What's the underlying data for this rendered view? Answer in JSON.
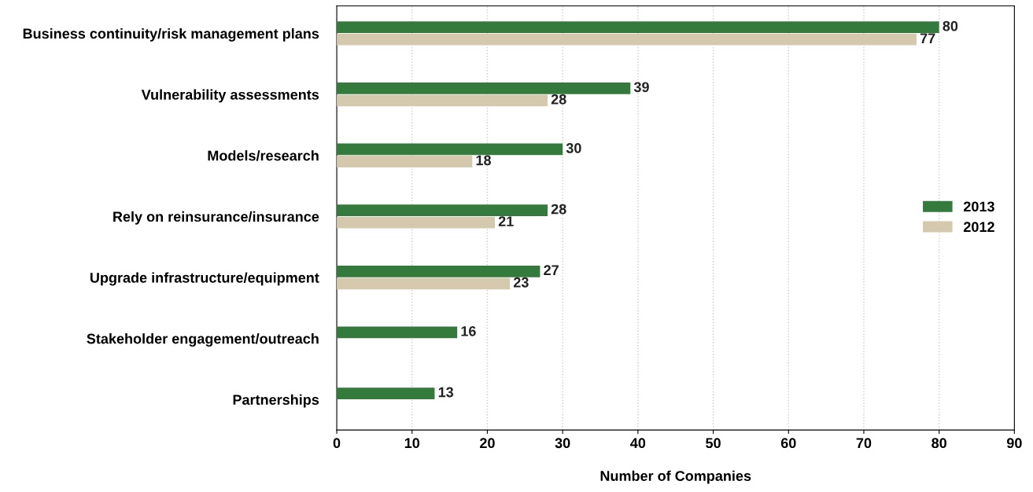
{
  "chart_data": {
    "type": "bar",
    "orientation": "horizontal",
    "xlabel": "Number of Companies",
    "categories": [
      "Business continuity/risk management plans",
      "Vulnerability assessments",
      "Models/research",
      "Rely on reinsurance/insurance",
      "Upgrade infrastructure/equipment",
      "Stakeholder engagement/outreach",
      "Partnerships"
    ],
    "series": [
      {
        "name": "2013",
        "color": "#347a3d",
        "values": [
          80,
          39,
          30,
          28,
          27,
          16,
          13
        ]
      },
      {
        "name": "2012",
        "color": "#d4c9ad",
        "values": [
          77,
          28,
          18,
          21,
          23,
          null,
          null
        ]
      }
    ],
    "xlim": [
      0,
      90
    ],
    "xticks": [
      0,
      10,
      20,
      30,
      40,
      50,
      60,
      70,
      80,
      90
    ],
    "grid": "x",
    "legend": "right",
    "data_labels": true
  }
}
